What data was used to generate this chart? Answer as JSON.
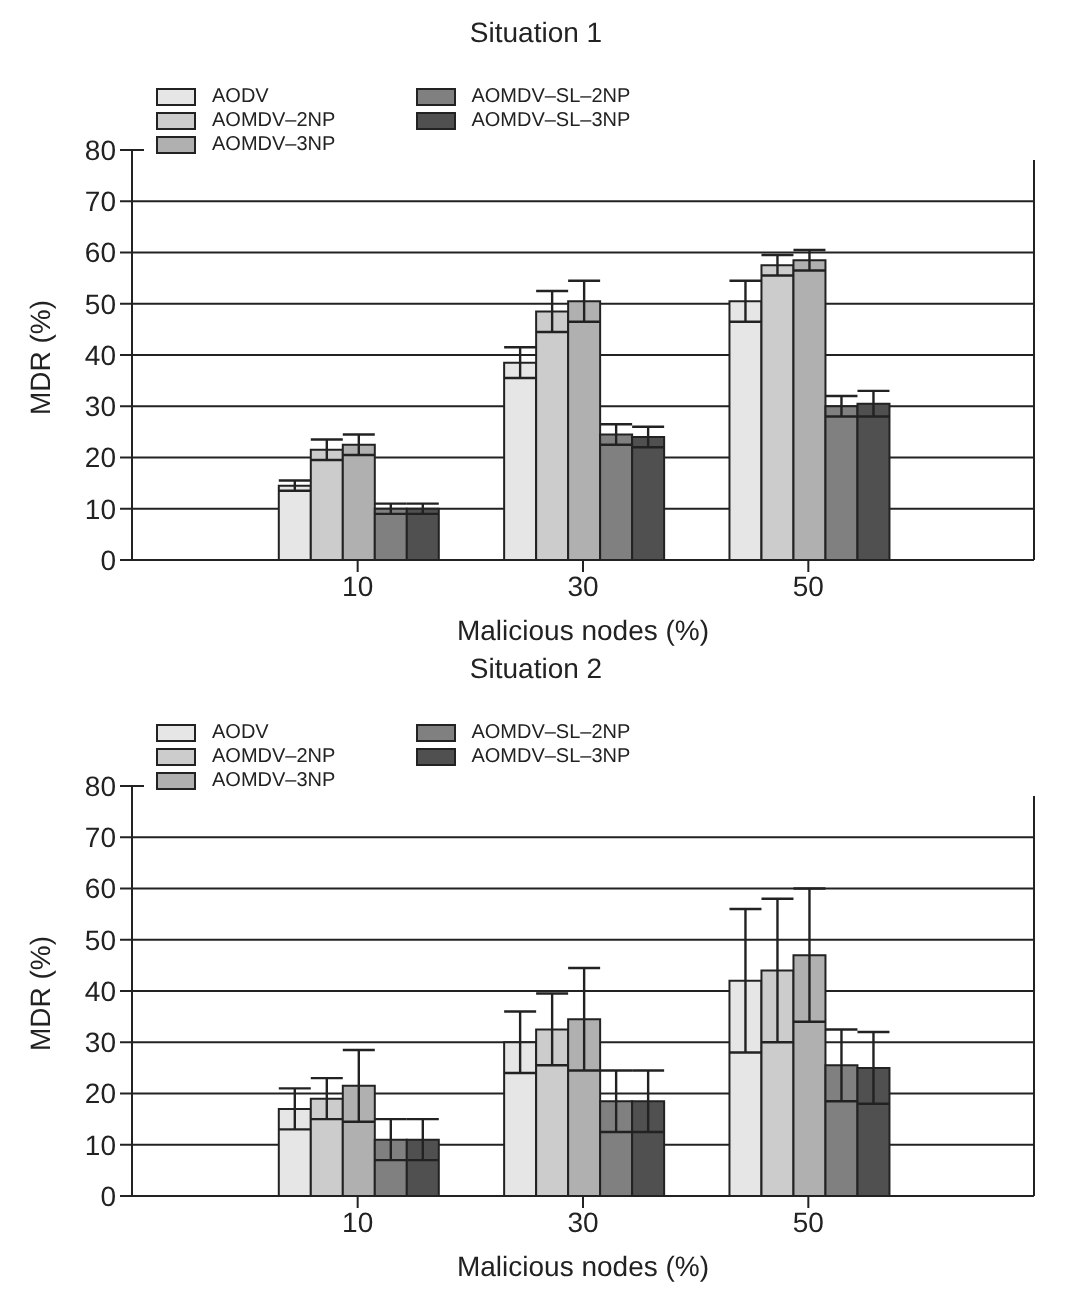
{
  "chart_data": [
    {
      "type": "bar",
      "title": "Situation 1",
      "xlabel": "Malicious nodes (%)",
      "ylabel": "MDR (%)",
      "categories": [
        "10",
        "30",
        "50"
      ],
      "ylim": [
        0,
        80
      ],
      "yticks": [
        0,
        10,
        20,
        30,
        40,
        50,
        60,
        70,
        80
      ],
      "grid": "y",
      "legend": "top left",
      "series": [
        {
          "name": "AODV",
          "color": "#e6e6e6",
          "values": [
            14.5,
            38.5,
            50.5
          ],
          "errors": [
            1,
            3,
            4
          ]
        },
        {
          "name": "AOMDV–2NP",
          "color": "#cccccc",
          "values": [
            21.5,
            48.5,
            57.5
          ],
          "errors": [
            2,
            4,
            2
          ]
        },
        {
          "name": "AOMDV–3NP",
          "color": "#b0b0b0",
          "values": [
            22.5,
            50.5,
            58.5
          ],
          "errors": [
            2,
            4,
            2
          ]
        },
        {
          "name": "AOMDV–SL–2NP",
          "color": "#808080",
          "values": [
            10,
            24.5,
            30
          ],
          "errors": [
            1,
            2,
            2
          ]
        },
        {
          "name": "AOMDV–SL–3NP",
          "color": "#505050",
          "values": [
            10,
            24,
            30.5
          ],
          "errors": [
            1,
            2,
            2.5
          ]
        }
      ]
    },
    {
      "type": "bar",
      "title": "Situation 2",
      "xlabel": "Malicious nodes (%)",
      "ylabel": "MDR (%)",
      "categories": [
        "10",
        "30",
        "50"
      ],
      "ylim": [
        0,
        80
      ],
      "yticks": [
        0,
        10,
        20,
        30,
        40,
        50,
        60,
        70,
        80
      ],
      "grid": "y",
      "legend": "top left",
      "series": [
        {
          "name": "AODV",
          "color": "#e6e6e6",
          "values": [
            17,
            30,
            42
          ],
          "errors": [
            4,
            6,
            14
          ]
        },
        {
          "name": "AOMDV–2NP",
          "color": "#cccccc",
          "values": [
            19,
            32.5,
            44
          ],
          "errors": [
            4,
            7,
            14
          ]
        },
        {
          "name": "AOMDV–3NP",
          "color": "#b0b0b0",
          "values": [
            21.5,
            34.5,
            47
          ],
          "errors": [
            7,
            10,
            13
          ]
        },
        {
          "name": "AOMDV–SL–2NP",
          "color": "#808080",
          "values": [
            11,
            18.5,
            25.5
          ],
          "errors": [
            4,
            6,
            7
          ]
        },
        {
          "name": "AOMDV–SL–3NP",
          "color": "#505050",
          "values": [
            11,
            18.5,
            25
          ],
          "errors": [
            4,
            6,
            7
          ]
        }
      ]
    }
  ]
}
